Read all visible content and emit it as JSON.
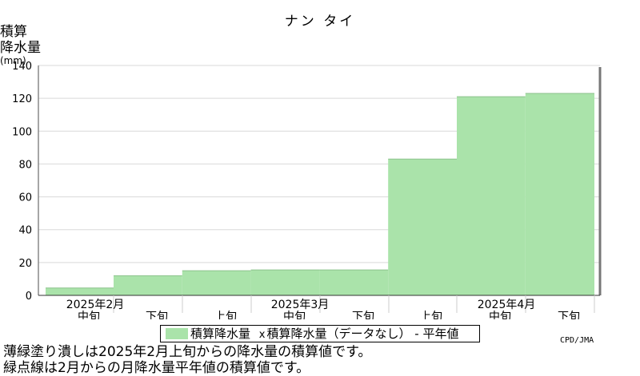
{
  "chart_data": {
    "type": "bar",
    "title": "ナン タイ",
    "ylabel_lines": [
      "積算",
      "降水量"
    ],
    "yunit": "(mm)",
    "ylim": [
      0,
      140
    ],
    "yticks": [
      0,
      20,
      40,
      60,
      80,
      100,
      120,
      140
    ],
    "grid": true,
    "categories": [
      "2025年2月 中旬",
      "2025年2月 下旬",
      "2025年3月 上旬",
      "2025年3月 中旬",
      "2025年3月 下旬",
      "2025年4月 上旬",
      "2025年4月 中旬",
      "2025年4月 下旬"
    ],
    "period_labels": [
      "中旬",
      "下旬",
      "上旬",
      "中旬",
      "下旬",
      "上旬",
      "中旬",
      "下旬"
    ],
    "month_labels": [
      "2025年2月",
      "2025年3月",
      "2025年4月"
    ],
    "series": [
      {
        "name": "積算降水量",
        "values": [
          4.5,
          12,
          15,
          15.5,
          15.5,
          83,
          121,
          123
        ],
        "color": "#aae3aa"
      }
    ],
    "legend": [
      "積算降水量",
      "積算降水量（データなし）",
      "平年値"
    ],
    "legend_position": "bottom-center"
  },
  "legend_marker": "x",
  "legend_dash": "-",
  "credit": "CPD/JMA",
  "notes": [
    "薄緑塗り潰しは2025年2月上旬からの降水量の積算値です。",
    "緑点線は2月からの月降水量平年値の積算値です。"
  ]
}
